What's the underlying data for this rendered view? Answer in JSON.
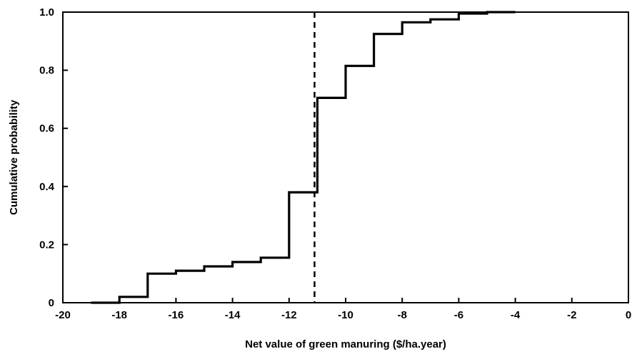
{
  "chart_data": {
    "type": "line",
    "subtype": "step-cdf",
    "title": "",
    "xlabel": "Net value of green manuring ($/ha.year)",
    "ylabel": "Cumulative probability",
    "xlim": [
      -20,
      0
    ],
    "ylim": [
      0,
      1.0
    ],
    "x_ticks": [
      -20,
      -18,
      -16,
      -14,
      -12,
      -10,
      -8,
      -6,
      -4,
      -2,
      0
    ],
    "y_ticks": [
      0,
      0.2,
      0.4,
      0.6,
      0.8,
      1.0
    ],
    "x_tick_labels": [
      "-20",
      "-18",
      "-16",
      "-14",
      "-12",
      "-10",
      "-8",
      "-6",
      "-4",
      "-2",
      "0"
    ],
    "y_tick_labels": [
      "0",
      "0.2",
      "0.4",
      "0.6",
      "0.8",
      "1.0"
    ],
    "grid": false,
    "reference_line": {
      "style": "dashed",
      "x": -11.1
    },
    "series": [
      {
        "x": [
          -19,
          -18,
          -18,
          -17,
          -17,
          -16,
          -16,
          -15,
          -15,
          -14,
          -14,
          -13,
          -13,
          -12,
          -12,
          -11,
          -11,
          -10,
          -10,
          -9,
          -9,
          -8,
          -8,
          -7,
          -7,
          -6,
          -6,
          -5,
          -5,
          -4
        ],
        "y": [
          0.0,
          0.0,
          0.02,
          0.02,
          0.1,
          0.1,
          0.11,
          0.11,
          0.125,
          0.125,
          0.14,
          0.14,
          0.155,
          0.155,
          0.38,
          0.38,
          0.705,
          0.705,
          0.815,
          0.815,
          0.925,
          0.925,
          0.965,
          0.965,
          0.975,
          0.975,
          0.995,
          0.995,
          1.0,
          1.0
        ]
      }
    ]
  }
}
